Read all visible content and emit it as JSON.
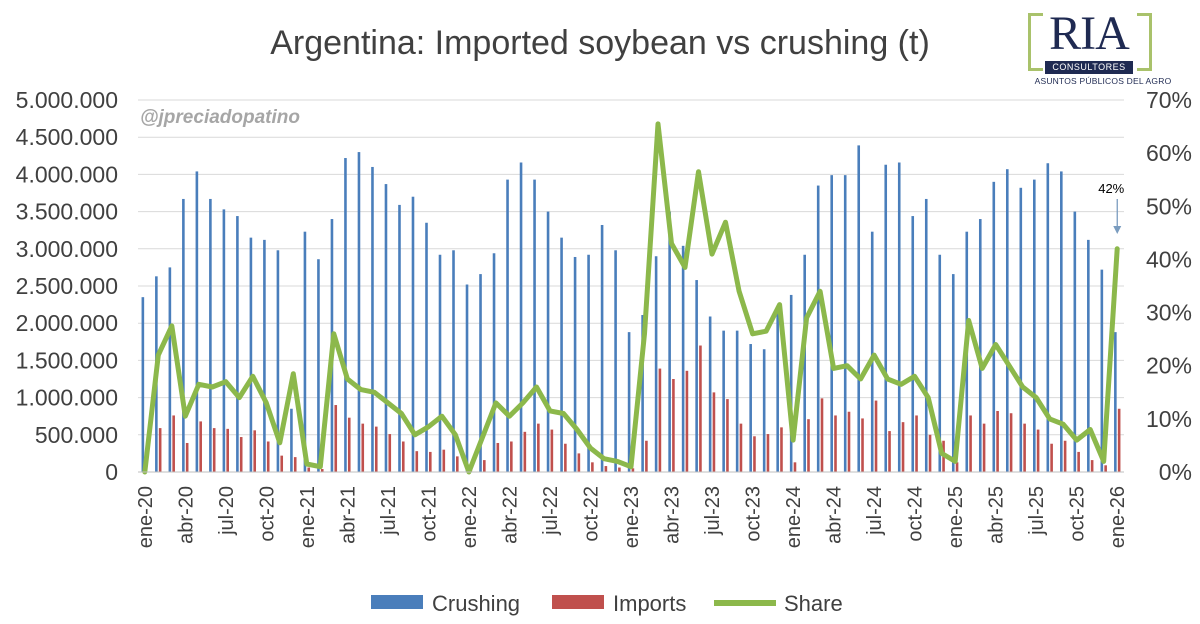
{
  "brand": {
    "logo_word": "RIA",
    "logo_band": "CONSULTORES",
    "logo_tagline": "ASUNTOS PÚBLICOS DEL AGRO"
  },
  "watermark": "@jpreciadopatino",
  "colors": {
    "crushing": "#4a7ebb",
    "imports": "#c0504d",
    "share": "#8cb84b",
    "grid": "#d9d9d9",
    "text": "#404040",
    "arrow": "#7a9cbf"
  },
  "chart_data": {
    "type": "bar",
    "title": "Argentina: Imported soybean vs crushing (t)",
    "categories": [
      "ene-20",
      "feb-20",
      "mar-20",
      "abr-20",
      "may-20",
      "jun-20",
      "jul-20",
      "ago-20",
      "sep-20",
      "oct-20",
      "nov-20",
      "dic-20",
      "ene-21",
      "feb-21",
      "mar-21",
      "abr-21",
      "may-21",
      "jun-21",
      "jul-21",
      "ago-21",
      "sep-21",
      "oct-21",
      "nov-21",
      "dic-21",
      "ene-22",
      "feb-22",
      "mar-22",
      "abr-22",
      "may-22",
      "jun-22",
      "jul-22",
      "ago-22",
      "sep-22",
      "oct-22",
      "nov-22",
      "dic-22",
      "ene-23",
      "feb-23",
      "mar-23",
      "abr-23",
      "may-23",
      "jun-23",
      "jul-23",
      "ago-23",
      "sep-23",
      "oct-23",
      "nov-23",
      "dic-23",
      "ene-24",
      "feb-24",
      "mar-24",
      "abr-24",
      "may-24",
      "jun-24",
      "jul-24",
      "ago-24",
      "sep-24",
      "oct-24",
      "nov-24",
      "dic-24",
      "ene-25",
      "feb-25",
      "mar-25",
      "abr-25",
      "may-25",
      "jun-25",
      "jul-25",
      "ago-25",
      "sep-25",
      "oct-25",
      "nov-25",
      "dic-25",
      "ene-26"
    ],
    "x_tick_labels": [
      "ene-20",
      "abr-20",
      "jul-20",
      "oct-20",
      "ene-21",
      "abr-21",
      "jul-21",
      "oct-21",
      "ene-22",
      "abr-22",
      "jul-22",
      "oct-22",
      "ene-23",
      "abr-23",
      "jul-23",
      "oct-23",
      "ene-24",
      "abr-24",
      "jul-24",
      "oct-24",
      "ene-25",
      "abr-25",
      "jul-25",
      "oct-25",
      "ene-26"
    ],
    "series": [
      {
        "name": "Crushing",
        "type": "bar",
        "axis": "left",
        "values": [
          2350000,
          2630000,
          2750000,
          3670000,
          4040000,
          3670000,
          3530000,
          3440000,
          3150000,
          3120000,
          2980000,
          850000,
          3230000,
          2860000,
          3400000,
          4220000,
          4300000,
          4100000,
          3870000,
          3590000,
          3700000,
          3350000,
          2920000,
          2980000,
          2520000,
          2660000,
          2940000,
          3930000,
          4160000,
          3930000,
          3500000,
          3150000,
          2890000,
          2920000,
          3320000,
          2980000,
          1880000,
          2110000,
          2900000,
          3500000,
          3040000,
          2580000,
          2090000,
          1900000,
          1900000,
          1720000,
          1650000,
          2150000,
          2380000,
          2920000,
          3850000,
          3990000,
          3990000,
          4390000,
          3230000,
          4130000,
          4160000,
          3440000,
          3670000,
          2920000,
          2660000,
          3230000,
          3400000,
          3900000,
          4070000,
          3820000,
          3930000,
          4150000,
          4040000,
          3500000,
          3120000,
          2720000,
          1880000
        ]
      },
      {
        "name": "Imports",
        "type": "bar",
        "axis": "left",
        "values": [
          0,
          590000,
          760000,
          390000,
          680000,
          590000,
          580000,
          470000,
          560000,
          410000,
          220000,
          200000,
          60000,
          40000,
          900000,
          730000,
          650000,
          610000,
          510000,
          410000,
          280000,
          270000,
          300000,
          210000,
          30000,
          160000,
          390000,
          410000,
          540000,
          650000,
          570000,
          380000,
          250000,
          130000,
          80000,
          60000,
          50000,
          420000,
          1390000,
          1250000,
          1360000,
          1700000,
          1070000,
          980000,
          650000,
          480000,
          510000,
          600000,
          130000,
          710000,
          990000,
          760000,
          810000,
          720000,
          960000,
          550000,
          670000,
          760000,
          500000,
          420000,
          130000,
          760000,
          650000,
          820000,
          790000,
          650000,
          570000,
          380000,
          420000,
          270000,
          160000,
          90000,
          850000
        ]
      },
      {
        "name": "Share",
        "type": "line",
        "axis": "right",
        "values": [
          0,
          22,
          27.5,
          10.5,
          16.5,
          16,
          17,
          14,
          18,
          13,
          5.5,
          18.5,
          1.5,
          1,
          26,
          17.5,
          15.5,
          15,
          13,
          11,
          7,
          8.5,
          10.5,
          7,
          0,
          6.5,
          13,
          10.5,
          13,
          16,
          11.5,
          11,
          8,
          4.5,
          2.5,
          2,
          1,
          26,
          65.5,
          43,
          38.5,
          56.5,
          41,
          47,
          34,
          26,
          26.5,
          31.5,
          6,
          29,
          34,
          19.5,
          20,
          17.5,
          22,
          17.5,
          16.5,
          18,
          14,
          3.5,
          2,
          28.5,
          19.5,
          24,
          20,
          16,
          14,
          10,
          9,
          6,
          8,
          2,
          42
        ]
      }
    ],
    "y_left": {
      "min": 0,
      "max": 5000000,
      "step": 500000,
      "tick_labels": [
        "0",
        "500.000",
        "1.000.000",
        "1.500.000",
        "2.000.000",
        "2.500.000",
        "3.000.000",
        "3.500.000",
        "4.000.000",
        "4.500.000",
        "5.000.000"
      ]
    },
    "y_right": {
      "min": 0,
      "max": 70,
      "step": 10,
      "tick_labels": [
        "0%",
        "10%",
        "20%",
        "30%",
        "40%",
        "50%",
        "60%",
        "70%"
      ]
    },
    "annotations": [
      {
        "text": "42%",
        "category": "ene-26",
        "series": "Share"
      }
    ],
    "grid": true,
    "legend": {
      "position": "bottom",
      "entries": [
        "Crushing",
        "Imports",
        "Share"
      ]
    }
  }
}
